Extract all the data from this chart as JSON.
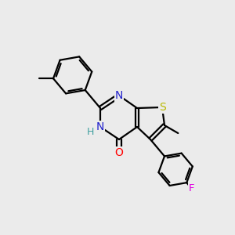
{
  "background_color": "#ebebeb",
  "bond_color": "#000000",
  "atom_colors": {
    "N": "#2020cc",
    "O": "#ff0000",
    "S": "#b8b800",
    "F": "#e000e0",
    "H": "#40a0a0",
    "C": "#000000"
  }
}
